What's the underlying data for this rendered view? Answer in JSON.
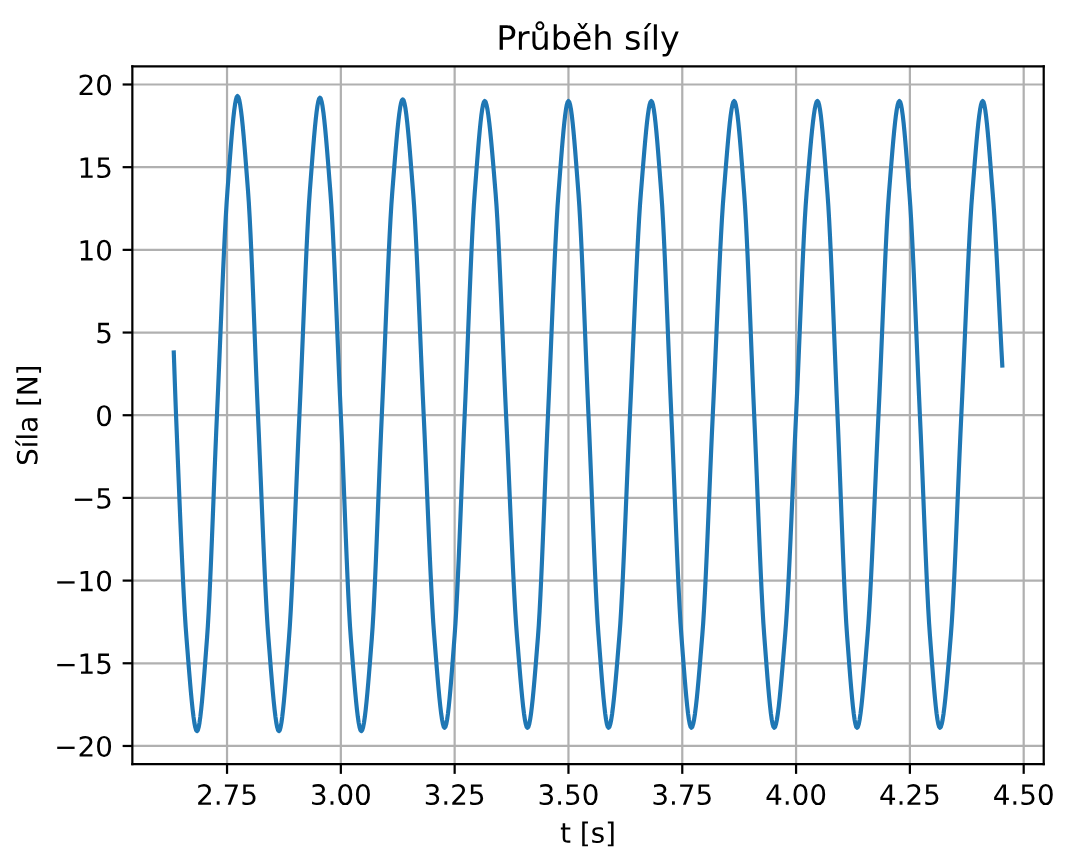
{
  "chart_data": {
    "type": "line",
    "title": "Průběh síly",
    "xlabel": "t [s]",
    "ylabel": "Síla [N]",
    "x": [
      2.633,
      2.638,
      2.661,
      2.684,
      2.706,
      2.728,
      2.751,
      2.773,
      2.796,
      2.818,
      2.841,
      2.864,
      2.886,
      2.909,
      2.932,
      2.954,
      2.977,
      3.0,
      3.022,
      3.045,
      3.068,
      3.09,
      3.113,
      3.136,
      3.159,
      3.182,
      3.205,
      3.228,
      3.25,
      3.272,
      3.294,
      3.316,
      3.34,
      3.363,
      3.387,
      3.41,
      3.433,
      3.455,
      3.478,
      3.5,
      3.522,
      3.544,
      3.566,
      3.588,
      3.612,
      3.635,
      3.659,
      3.682,
      3.704,
      3.726,
      3.748,
      3.77,
      3.794,
      3.817,
      3.841,
      3.864,
      3.886,
      3.908,
      3.93,
      3.952,
      3.976,
      4.0,
      4.023,
      4.047,
      4.069,
      4.091,
      4.112,
      4.134,
      4.157,
      4.181,
      4.204,
      4.227,
      4.249,
      4.272,
      4.294,
      4.316,
      4.34,
      4.363,
      4.387,
      4.41,
      4.432,
      4.453
    ],
    "series": [
      {
        "color": "#1f77b4",
        "values": [
          3.8,
          0,
          -13.5,
          -19.1,
          -13.5,
          0.1,
          13.6,
          19.3,
          13.6,
          0,
          -13.5,
          -19.1,
          -13.5,
          0,
          13.6,
          19.2,
          13.5,
          0,
          -13.5,
          -19.1,
          -13.5,
          0,
          13.5,
          19.1,
          13.4,
          0,
          -13.3,
          -18.9,
          -13.3,
          0,
          13.4,
          19.0,
          13.4,
          0,
          -13.4,
          -18.9,
          -13.4,
          0,
          13.4,
          19.0,
          13.4,
          0,
          -13.3,
          -18.9,
          -13.3,
          0,
          13.4,
          19.0,
          13.4,
          0,
          -13.3,
          -18.9,
          -13.3,
          0,
          13.4,
          19.0,
          13.4,
          0,
          -13.3,
          -18.9,
          -13.3,
          0,
          13.4,
          19.0,
          13.4,
          0,
          -13.3,
          -18.9,
          -13.3,
          0,
          13.4,
          19.0,
          13.4,
          0,
          -13.3,
          -18.9,
          -13.3,
          0,
          13.4,
          19.0,
          13.4,
          3.0
        ]
      }
    ],
    "xlim": [
      2.542,
      4.544
    ],
    "ylim": [
      -21.1,
      21.1
    ],
    "xticks": [
      {
        "value": 2.75,
        "label": "2.75"
      },
      {
        "value": 3.0,
        "label": "3.00"
      },
      {
        "value": 3.25,
        "label": "3.25"
      },
      {
        "value": 3.5,
        "label": "3.50"
      },
      {
        "value": 3.75,
        "label": "3.75"
      },
      {
        "value": 4.0,
        "label": "4.00"
      },
      {
        "value": 4.25,
        "label": "4.25"
      },
      {
        "value": 4.5,
        "label": "4.50"
      }
    ],
    "yticks": [
      {
        "value": -20,
        "label": "−20"
      },
      {
        "value": -15,
        "label": "−15"
      },
      {
        "value": -10,
        "label": "−10"
      },
      {
        "value": -5,
        "label": "−5"
      },
      0,
      5,
      10,
      15,
      20
    ],
    "grid": true
  }
}
